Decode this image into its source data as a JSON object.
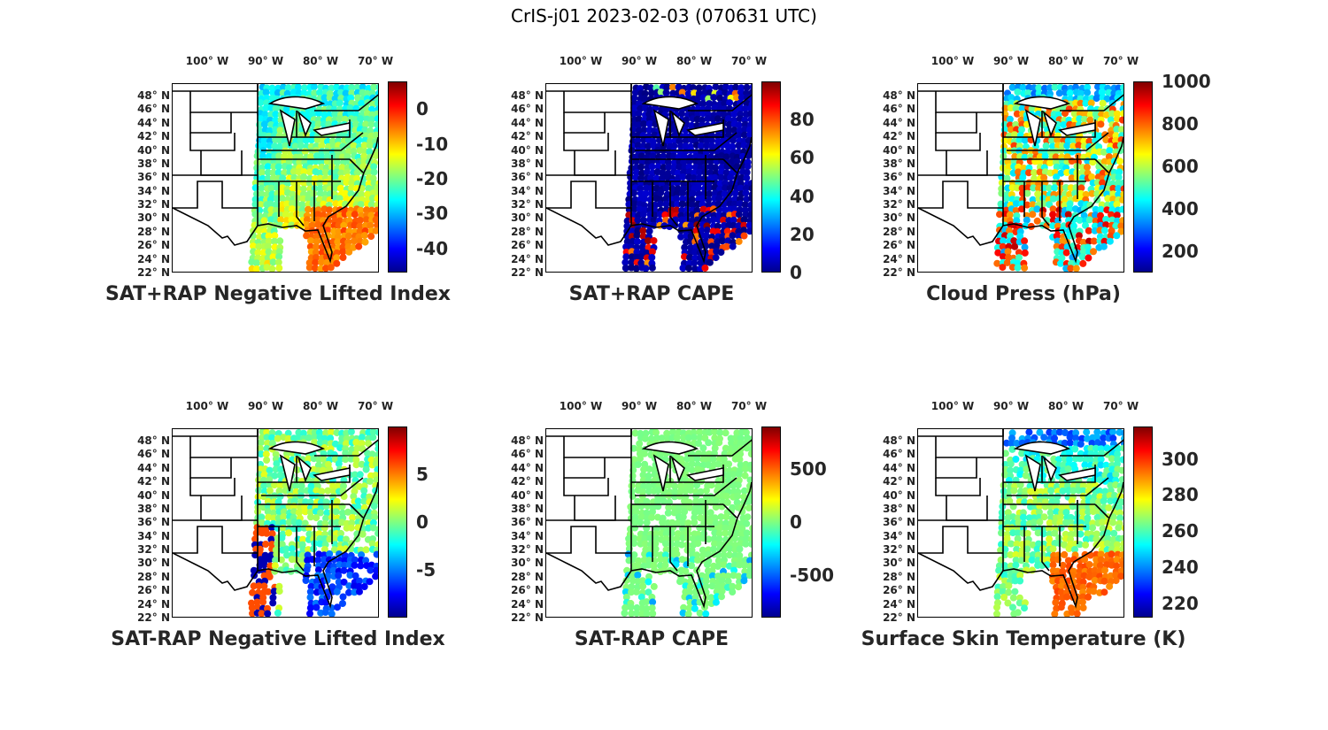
{
  "title": "CrIS-j01 2023-02-03 (070631 UTC)",
  "lon_ticks": [
    "100° W",
    "90° W",
    "80° W",
    "70° W"
  ],
  "lat_ticks": [
    "48° N",
    "46° N",
    "44° N",
    "42° N",
    "40° N",
    "38° N",
    "36° N",
    "34° N",
    "32° N",
    "30° N",
    "28° N",
    "26° N",
    "24° N",
    "22° N"
  ],
  "panels": [
    {
      "id": "p1",
      "title": "SAT+RAP Negative Lifted Index",
      "colorbar": {
        "min": -47,
        "max": 8,
        "ticks": [
          "0",
          "-10",
          "-20",
          "-30",
          "-40"
        ],
        "tick_values": [
          0,
          -10,
          -20,
          -30,
          -40
        ]
      },
      "field": "nli"
    },
    {
      "id": "p2",
      "title": "SAT+RAP CAPE",
      "colorbar": {
        "min": 0,
        "max": 100,
        "ticks": [
          "80",
          "60",
          "40",
          "20",
          "0"
        ],
        "tick_values": [
          80,
          60,
          40,
          20,
          0
        ]
      },
      "field": "cape"
    },
    {
      "id": "p3",
      "title": "Cloud Press (hPa)",
      "colorbar": {
        "min": 100,
        "max": 1000,
        "ticks": [
          "1000",
          "800",
          "600",
          "400",
          "200"
        ],
        "tick_values": [
          1000,
          800,
          600,
          400,
          200
        ]
      },
      "field": "cloud"
    },
    {
      "id": "p4",
      "title": "SAT-RAP Negative Lifted Index",
      "colorbar": {
        "min": -10,
        "max": 10,
        "ticks": [
          "5",
          "0",
          "-5"
        ],
        "tick_values": [
          5,
          0,
          -5
        ]
      },
      "field": "dnli"
    },
    {
      "id": "p5",
      "title": "SAT-RAP CAPE",
      "colorbar": {
        "min": -900,
        "max": 900,
        "ticks": [
          "500",
          "0",
          "-500"
        ],
        "tick_values": [
          500,
          0,
          -500
        ]
      },
      "field": "dcape"
    },
    {
      "id": "p6",
      "title": "Surface Skin Temperature (K)",
      "colorbar": {
        "min": 212,
        "max": 318,
        "ticks": [
          "300",
          "280",
          "260",
          "240",
          "220"
        ],
        "tick_values": [
          300,
          280,
          260,
          240,
          220
        ]
      },
      "field": "skin"
    }
  ]
}
